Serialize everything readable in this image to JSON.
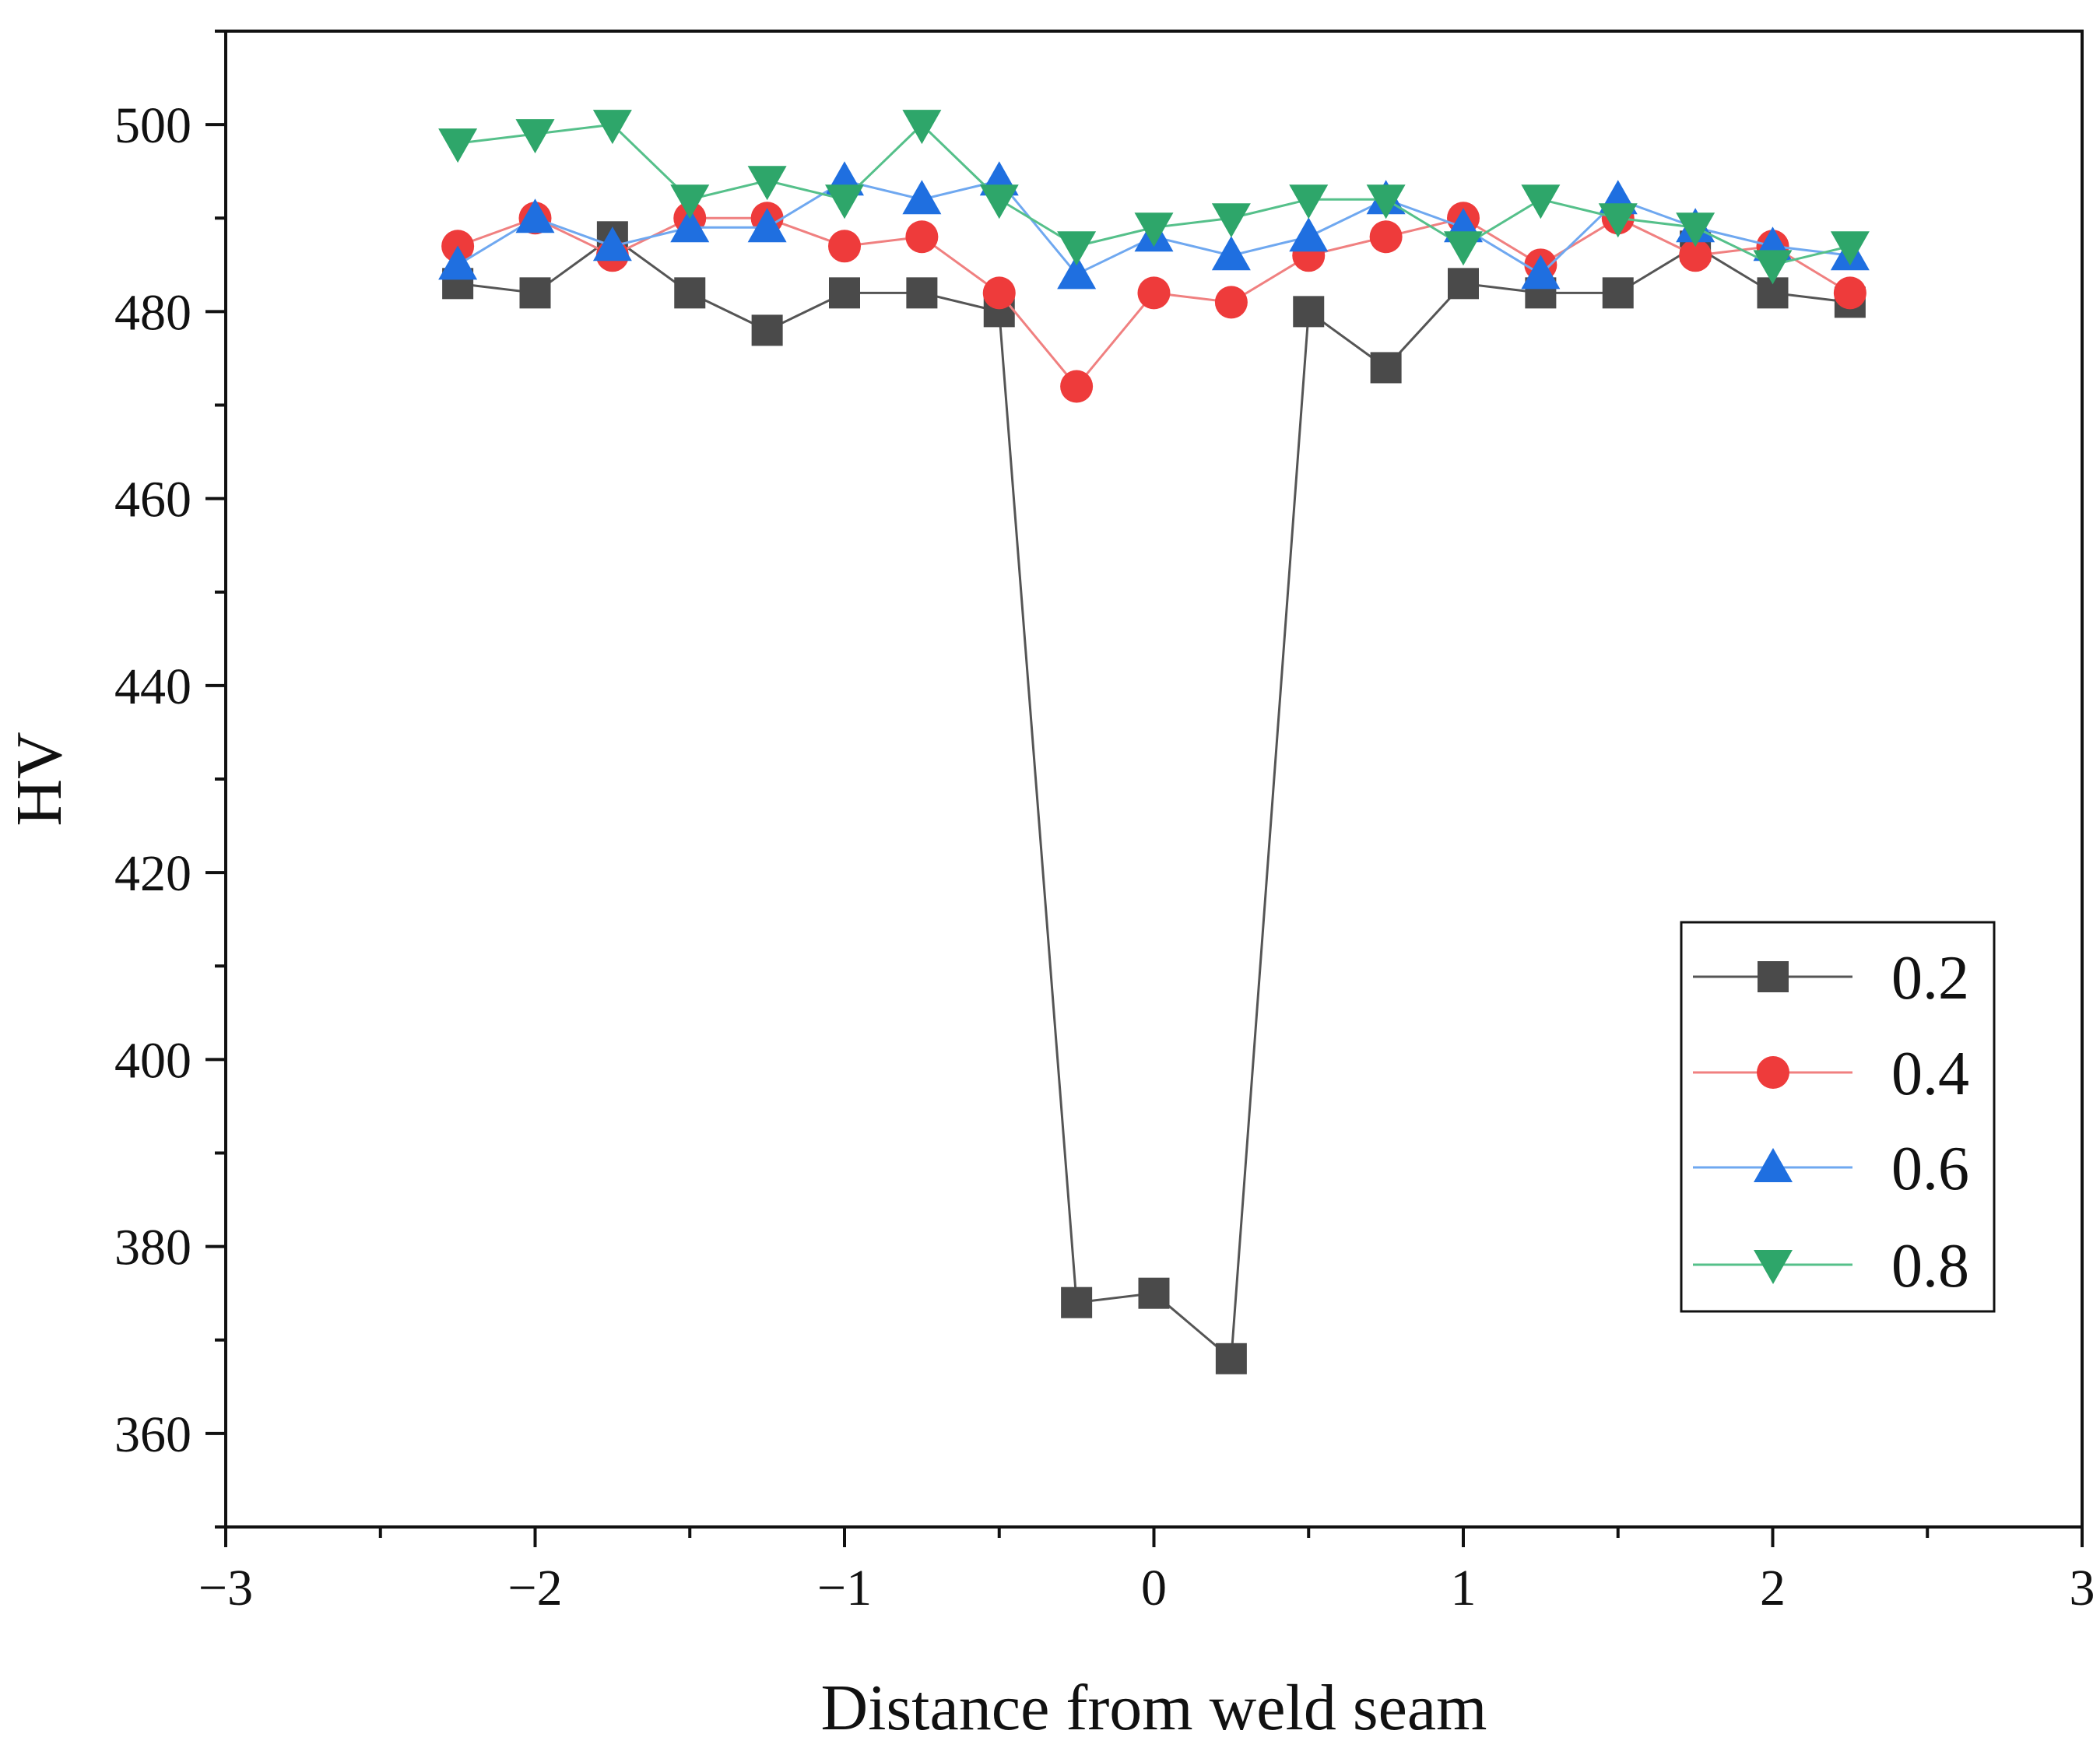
{
  "chart_data": {
    "type": "line",
    "title": "",
    "xlabel": "Distance from weld seam",
    "ylabel": "HV",
    "xlim": [
      -3,
      3
    ],
    "ylim": [
      350,
      510
    ],
    "xticks": [
      -3,
      -2,
      -1,
      0,
      1,
      2,
      3
    ],
    "xtick_labels": [
      "−3",
      "−2",
      "−1",
      "0",
      "1",
      "2",
      "3"
    ],
    "yticks": [
      360,
      380,
      400,
      420,
      440,
      460,
      480,
      500
    ],
    "ytick_labels": [
      "360",
      "380",
      "400",
      "420",
      "440",
      "460",
      "480",
      "500"
    ],
    "grid": false,
    "legend_position": "right",
    "x": [
      -2.25,
      -2.0,
      -1.75,
      -1.5,
      -1.25,
      -1.0,
      -0.75,
      -0.5,
      -0.25,
      0.0,
      0.25,
      0.5,
      0.75,
      1.0,
      1.25,
      1.5,
      1.75,
      2.0,
      2.25
    ],
    "series": [
      {
        "name": "0.2",
        "color": "#4a4a4a",
        "line_color": "#555555",
        "marker": "square",
        "values": [
          483,
          482,
          488,
          482,
          478,
          482,
          482,
          480,
          374,
          375,
          368,
          480,
          474,
          483,
          482,
          482,
          487,
          482,
          481
        ]
      },
      {
        "name": "0.4",
        "color": "#ee3b3b",
        "line_color": "#f08080",
        "marker": "circle",
        "values": [
          487,
          490,
          486,
          490,
          490,
          487,
          488,
          482,
          472,
          482,
          481,
          486,
          488,
          490,
          485,
          490,
          486,
          487,
          482
        ]
      },
      {
        "name": "0.6",
        "color": "#1f6fe0",
        "line_color": "#6fa8f0",
        "marker": "triangle-up",
        "values": [
          485,
          490,
          487,
          489,
          489,
          494,
          492,
          494,
          484,
          488,
          486,
          488,
          492,
          489,
          484,
          492,
          489,
          487,
          486
        ]
      },
      {
        "name": "0.8",
        "color": "#2ea66a",
        "line_color": "#55c08a",
        "marker": "triangle-down",
        "values": [
          498,
          499,
          500,
          492,
          494,
          492,
          500,
          492,
          487,
          489,
          490,
          492,
          492,
          487,
          492,
          490,
          489,
          485,
          487
        ]
      }
    ]
  }
}
